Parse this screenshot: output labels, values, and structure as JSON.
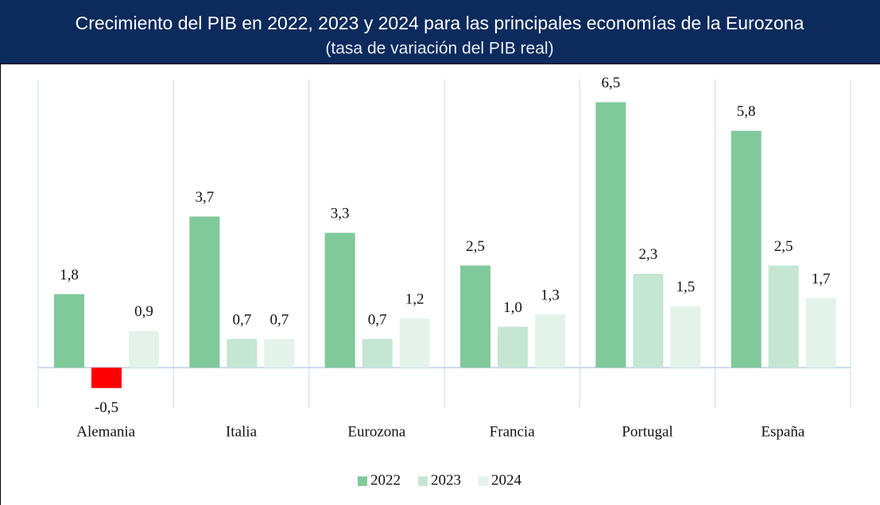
{
  "chart_data": {
    "type": "bar",
    "title": "Crecimiento del PIB en 2022, 2023 y 2024 para las principales economías de la Eurozona",
    "subtitle": "(tasa de variación del PIB real)",
    "categories": [
      "Alemania",
      "Italia",
      "Eurozona",
      "Francia",
      "Portugal",
      "España"
    ],
    "series": [
      {
        "name": "2022",
        "color": "#80c99b",
        "values": [
          1.8,
          3.7,
          3.3,
          2.5,
          6.5,
          5.8
        ],
        "value_labels": [
          "1,8",
          "3,7",
          "3,3",
          "2,5",
          "6,5",
          "5,8"
        ]
      },
      {
        "name": "2023",
        "color": "#c4e6d3",
        "values": [
          -0.5,
          0.7,
          0.7,
          1.0,
          2.3,
          2.5
        ],
        "value_labels": [
          "-0,5",
          "0,7",
          "0,7",
          "1,0",
          "2,3",
          "2,5"
        ]
      },
      {
        "name": "2024",
        "color": "#e3f3ea",
        "values": [
          0.9,
          0.7,
          1.2,
          1.3,
          1.5,
          1.7
        ],
        "value_labels": [
          "0,9",
          "0,7",
          "1,2",
          "1,3",
          "1,5",
          "1,7"
        ]
      }
    ],
    "negative_color": "#ff0000",
    "ylim": [
      -1,
      7
    ],
    "legend": "bottom"
  }
}
